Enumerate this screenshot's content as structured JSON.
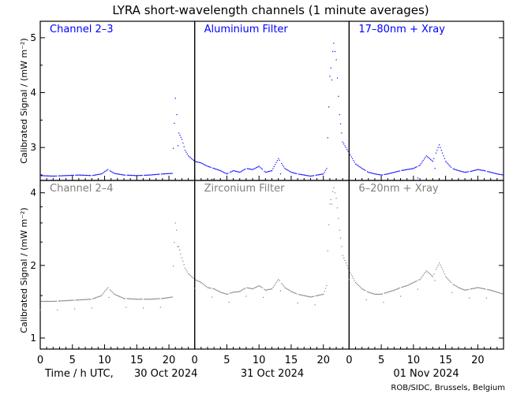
{
  "title": "LYRA short-wavelength channels (1 minute averages)",
  "ylabel": "Calibrated Signal / (mW m⁻²)",
  "xlabel_prefix": "Time / h UTC,",
  "credit": "ROB/SIDC, Brussels, Belgium",
  "x_ticks": [
    "0",
    "5",
    "10",
    "15",
    "20",
    "0",
    "5",
    "10",
    "15",
    "20",
    "0",
    "5",
    "10",
    "15",
    "20"
  ],
  "day_labels": [
    "30 Oct 2024",
    "31 Oct 2024",
    "01 Nov 2024"
  ],
  "colors": {
    "top": "#0000ff",
    "bottom": "#7f7f7f",
    "axes": "#000000"
  },
  "chart_data": [
    {
      "type": "scatter",
      "row": "top",
      "y_ticks": [
        "3",
        "4",
        "5"
      ],
      "ylim": [
        2.4,
        5.3
      ],
      "log_y": false,
      "xlim_hours": [
        0,
        72
      ],
      "panels": [
        "Channel 2–3",
        "Aluminium Filter",
        "17–80nm + Xray"
      ],
      "series": [
        {
          "points": [
            [
              0,
              2.49
            ],
            [
              2,
              2.48
            ],
            [
              4,
              2.49
            ],
            [
              6,
              2.5
            ],
            [
              8,
              2.49
            ],
            [
              9.5,
              2.52
            ],
            [
              10.5,
              2.6
            ],
            [
              11.5,
              2.53
            ],
            [
              13,
              2.5
            ],
            [
              15,
              2.49
            ],
            [
              17,
              2.5
            ],
            [
              19,
              2.52
            ],
            [
              20.5,
              2.53
            ],
            [
              21.0,
              3.9
            ],
            [
              21.4,
              3.3
            ],
            [
              22,
              3.15
            ],
            [
              22.5,
              2.95
            ],
            [
              23,
              2.85
            ],
            [
              24,
              2.75
            ],
            [
              25,
              2.72
            ],
            [
              26,
              2.66
            ],
            [
              27,
              2.62
            ],
            [
              28,
              2.58
            ],
            [
              29,
              2.52
            ],
            [
              30,
              2.58
            ],
            [
              31,
              2.55
            ],
            [
              32,
              2.62
            ],
            [
              33,
              2.6
            ],
            [
              34,
              2.66
            ],
            [
              35,
              2.55
            ],
            [
              36,
              2.58
            ],
            [
              37,
              2.8
            ],
            [
              38,
              2.62
            ],
            [
              39,
              2.55
            ],
            [
              40,
              2.52
            ],
            [
              41,
              2.5
            ],
            [
              42,
              2.48
            ],
            [
              43,
              2.5
            ],
            [
              44,
              2.52
            ],
            [
              44.5,
              2.62
            ],
            [
              45,
              4.3
            ],
            [
              45.6,
              4.9
            ],
            [
              46,
              4.6
            ],
            [
              46.5,
              3.6
            ],
            [
              47,
              3.1
            ],
            [
              48,
              2.9
            ],
            [
              49,
              2.7
            ],
            [
              50,
              2.62
            ],
            [
              51,
              2.55
            ],
            [
              52,
              2.52
            ],
            [
              53,
              2.5
            ],
            [
              54,
              2.52
            ],
            [
              55,
              2.55
            ],
            [
              56,
              2.58
            ],
            [
              57,
              2.6
            ],
            [
              58,
              2.62
            ],
            [
              59,
              2.68
            ],
            [
              60,
              2.85
            ],
            [
              61,
              2.75
            ],
            [
              62,
              3.05
            ],
            [
              63,
              2.75
            ],
            [
              64,
              2.62
            ],
            [
              65,
              2.58
            ],
            [
              66,
              2.55
            ],
            [
              67,
              2.57
            ],
            [
              68,
              2.6
            ],
            [
              69,
              2.58
            ],
            [
              70,
              2.55
            ],
            [
              71,
              2.52
            ],
            [
              72,
              2.5
            ]
          ]
        }
      ]
    },
    {
      "type": "scatter",
      "row": "bottom",
      "y_ticks": [
        "1",
        "2",
        "4"
      ],
      "ylim": [
        0.9,
        4.5
      ],
      "log_y": true,
      "xlim_hours": [
        0,
        72
      ],
      "panels": [
        "Channel 2–4",
        "Zirconium Filter",
        "6–20nm + Xray"
      ],
      "series": [
        {
          "points": [
            [
              0,
              1.42
            ],
            [
              2,
              1.42
            ],
            [
              4,
              1.43
            ],
            [
              6,
              1.44
            ],
            [
              8,
              1.45
            ],
            [
              9.5,
              1.5
            ],
            [
              10.5,
              1.62
            ],
            [
              11.5,
              1.52
            ],
            [
              13,
              1.46
            ],
            [
              15,
              1.45
            ],
            [
              17,
              1.45
            ],
            [
              19,
              1.46
            ],
            [
              20.5,
              1.48
            ],
            [
              21.0,
              3.0
            ],
            [
              21.5,
              2.4
            ],
            [
              22,
              2.15
            ],
            [
              22.5,
              1.95
            ],
            [
              23,
              1.85
            ],
            [
              24,
              1.75
            ],
            [
              25,
              1.7
            ],
            [
              26,
              1.62
            ],
            [
              27,
              1.6
            ],
            [
              28,
              1.55
            ],
            [
              29,
              1.52
            ],
            [
              30,
              1.55
            ],
            [
              31,
              1.56
            ],
            [
              32,
              1.62
            ],
            [
              33,
              1.6
            ],
            [
              34,
              1.65
            ],
            [
              35,
              1.58
            ],
            [
              36,
              1.6
            ],
            [
              37,
              1.75
            ],
            [
              38,
              1.62
            ],
            [
              39,
              1.56
            ],
            [
              40,
              1.52
            ],
            [
              41,
              1.5
            ],
            [
              42,
              1.48
            ],
            [
              43,
              1.5
            ],
            [
              44,
              1.52
            ],
            [
              44.5,
              1.65
            ],
            [
              45,
              3.6
            ],
            [
              45.6,
              4.2
            ],
            [
              46,
              3.8
            ],
            [
              46.5,
              2.8
            ],
            [
              47,
              2.2
            ],
            [
              48,
              1.9
            ],
            [
              49,
              1.7
            ],
            [
              50,
              1.6
            ],
            [
              51,
              1.55
            ],
            [
              52,
              1.52
            ],
            [
              53,
              1.52
            ],
            [
              54,
              1.55
            ],
            [
              55,
              1.58
            ],
            [
              56,
              1.62
            ],
            [
              57,
              1.65
            ],
            [
              58,
              1.7
            ],
            [
              59,
              1.75
            ],
            [
              60,
              1.9
            ],
            [
              61,
              1.8
            ],
            [
              62,
              2.05
            ],
            [
              63,
              1.8
            ],
            [
              64,
              1.68
            ],
            [
              65,
              1.62
            ],
            [
              66,
              1.58
            ],
            [
              67,
              1.6
            ],
            [
              68,
              1.62
            ],
            [
              69,
              1.6
            ],
            [
              70,
              1.58
            ],
            [
              71,
              1.55
            ],
            [
              72,
              1.52
            ]
          ]
        }
      ]
    }
  ]
}
